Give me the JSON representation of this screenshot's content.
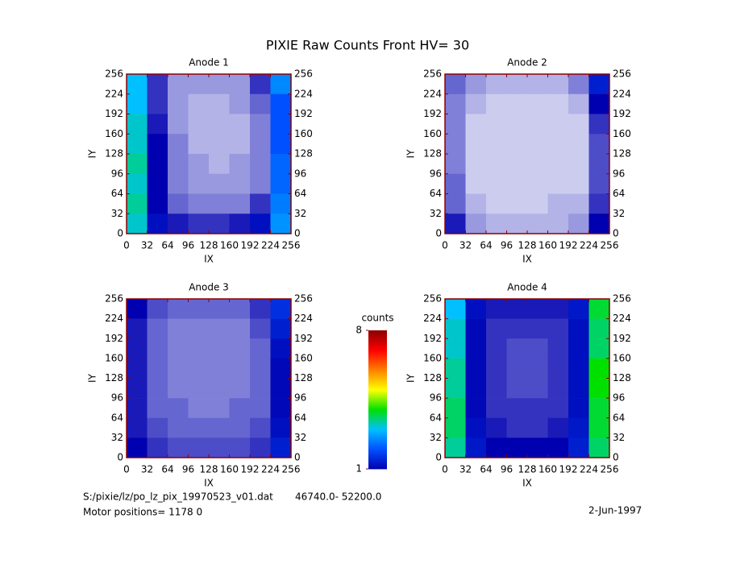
{
  "title": "PIXIE Raw Counts Front HV= 30",
  "chart_data": [
    {
      "type": "heatmap",
      "title": "Anode 1",
      "xlabel": "IX",
      "ylabel": "IY",
      "xlim": [
        0,
        256
      ],
      "ylim": [
        0,
        256
      ],
      "xticks": [
        0,
        32,
        64,
        96,
        128,
        160,
        192,
        224,
        256
      ],
      "yticks": [
        0,
        32,
        64,
        96,
        128,
        160,
        192,
        224,
        256
      ],
      "values": [
        [
          3,
          0.8,
          0.4,
          0.4,
          0.4,
          0.4,
          0.8,
          2.5
        ],
        [
          3,
          0.8,
          0.4,
          0.3,
          0.3,
          0.4,
          0.6,
          2
        ],
        [
          3.2,
          0.9,
          0.4,
          0.3,
          0.3,
          0.3,
          0.5,
          2
        ],
        [
          3.2,
          1,
          0.5,
          0.3,
          0.3,
          0.3,
          0.5,
          2
        ],
        [
          3.4,
          1,
          0.5,
          0.4,
          0.3,
          0.4,
          0.5,
          2.2
        ],
        [
          3.2,
          1,
          0.5,
          0.4,
          0.4,
          0.4,
          0.5,
          2.2
        ],
        [
          3.4,
          1,
          0.6,
          0.5,
          0.5,
          0.5,
          0.8,
          2.4
        ],
        [
          3.2,
          1.2,
          0.9,
          0.8,
          0.8,
          0.9,
          1.2,
          2.6
        ]
      ]
    },
    {
      "type": "heatmap",
      "title": "Anode 2",
      "xlabel": "IX",
      "ylabel": "IY",
      "xlim": [
        0,
        256
      ],
      "ylim": [
        0,
        256
      ],
      "xticks": [
        0,
        32,
        64,
        96,
        128,
        160,
        192,
        224,
        256
      ],
      "yticks": [
        0,
        32,
        64,
        96,
        128,
        160,
        192,
        224,
        256
      ],
      "values": [
        [
          0.6,
          0.4,
          0.3,
          0.3,
          0.3,
          0.3,
          0.5,
          1.4
        ],
        [
          0.5,
          0.3,
          0.2,
          0.2,
          0.2,
          0.2,
          0.3,
          1
        ],
        [
          0.5,
          0.2,
          0.2,
          0.2,
          0.2,
          0.2,
          0.2,
          0.8
        ],
        [
          0.5,
          0.2,
          0.2,
          0.2,
          0.2,
          0.2,
          0.2,
          0.7
        ],
        [
          0.5,
          0.2,
          0.2,
          0.2,
          0.2,
          0.2,
          0.2,
          0.7
        ],
        [
          0.6,
          0.2,
          0.2,
          0.2,
          0.2,
          0.2,
          0.2,
          0.7
        ],
        [
          0.6,
          0.3,
          0.2,
          0.2,
          0.2,
          0.3,
          0.3,
          0.8
        ],
        [
          0.9,
          0.4,
          0.3,
          0.3,
          0.3,
          0.3,
          0.4,
          1
        ]
      ]
    },
    {
      "type": "heatmap",
      "title": "Anode 3",
      "xlabel": "IX",
      "ylabel": "IY",
      "xlim": [
        0,
        256
      ],
      "ylim": [
        0,
        256
      ],
      "xticks": [
        0,
        32,
        64,
        96,
        128,
        160,
        192,
        224,
        256
      ],
      "yticks": [
        0,
        32,
        64,
        96,
        128,
        160,
        192,
        224,
        256
      ],
      "values": [
        [
          1,
          0.7,
          0.6,
          0.6,
          0.6,
          0.6,
          0.8,
          1.6
        ],
        [
          0.9,
          0.6,
          0.5,
          0.5,
          0.5,
          0.5,
          0.7,
          1.4
        ],
        [
          0.9,
          0.6,
          0.5,
          0.5,
          0.5,
          0.5,
          0.6,
          1.2
        ],
        [
          0.9,
          0.6,
          0.5,
          0.5,
          0.5,
          0.5,
          0.6,
          1.1
        ],
        [
          0.9,
          0.6,
          0.5,
          0.5,
          0.5,
          0.5,
          0.6,
          1.1
        ],
        [
          0.9,
          0.6,
          0.6,
          0.5,
          0.5,
          0.6,
          0.6,
          1.1
        ],
        [
          0.9,
          0.7,
          0.6,
          0.6,
          0.6,
          0.6,
          0.7,
          1.2
        ],
        [
          1,
          0.8,
          0.7,
          0.7,
          0.7,
          0.7,
          0.8,
          1.4
        ]
      ]
    },
    {
      "type": "heatmap",
      "title": "Anode 4",
      "xlabel": "IX",
      "ylabel": "IY",
      "xlim": [
        0,
        256
      ],
      "ylim": [
        0,
        256
      ],
      "xticks": [
        0,
        32,
        64,
        96,
        128,
        160,
        192,
        224,
        256
      ],
      "yticks": [
        0,
        32,
        64,
        96,
        128,
        160,
        192,
        224,
        256
      ],
      "values": [
        [
          3,
          1.2,
          0.9,
          0.9,
          0.9,
          0.9,
          1.3,
          3.8
        ],
        [
          3.2,
          1.1,
          0.8,
          0.8,
          0.8,
          0.8,
          1.2,
          3.6
        ],
        [
          3.2,
          1.1,
          0.8,
          0.7,
          0.7,
          0.8,
          1.2,
          3.6
        ],
        [
          3.4,
          1.1,
          0.8,
          0.7,
          0.7,
          0.8,
          1.2,
          4
        ],
        [
          3.4,
          1.1,
          0.8,
          0.7,
          0.7,
          0.8,
          1.2,
          4
        ],
        [
          3.6,
          1.1,
          0.8,
          0.8,
          0.8,
          0.8,
          1.2,
          3.8
        ],
        [
          3.6,
          1.2,
          0.9,
          0.8,
          0.8,
          0.9,
          1.3,
          3.8
        ],
        [
          3.4,
          1.3,
          1,
          1,
          1,
          1,
          1.4,
          3.6
        ]
      ]
    }
  ],
  "colorbar": {
    "label": "counts",
    "clim": [
      1,
      8
    ],
    "ticks": [
      1,
      8
    ],
    "colors": [
      "#0000b0",
      "#0050ff",
      "#00c0ff",
      "#00e000",
      "#ffff00",
      "#ff8000",
      "#ff0000",
      "#8b0000"
    ]
  },
  "footer": {
    "file": "S:/pixie/lz/po_lz_pix_19970523_v01.dat",
    "range": "46740.0- 52200.0",
    "motor": "Motor positions= 1178 0",
    "date": "2-Jun-1997"
  }
}
